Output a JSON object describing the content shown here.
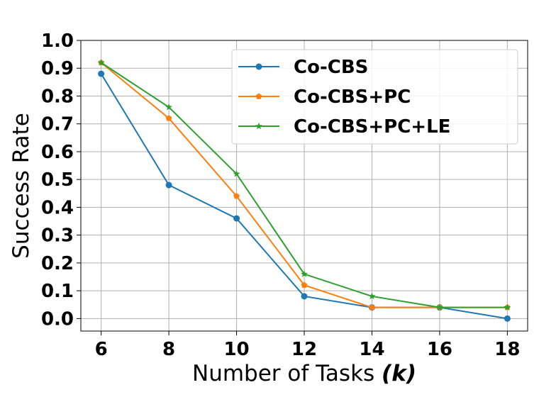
{
  "chart_data": {
    "type": "line",
    "title": "",
    "xlabel": "Number of Tasks",
    "xlabel_symbol": "(k)",
    "ylabel": "Success Rate",
    "x": [
      6,
      8,
      10,
      12,
      14,
      16,
      18
    ],
    "xticks": [
      "6",
      "8",
      "10",
      "12",
      "14",
      "16",
      "18"
    ],
    "yticks": [
      "0.0",
      "0.1",
      "0.2",
      "0.3",
      "0.4",
      "0.5",
      "0.6",
      "0.7",
      "0.8",
      "0.9",
      "1.0"
    ],
    "xlim": [
      5.4,
      18.6
    ],
    "ylim": [
      -0.045,
      1.0
    ],
    "grid": true,
    "legend_position": "top-right",
    "series": [
      {
        "name": "Co-CBS",
        "color": "#1f77b4",
        "marker": "circle",
        "values": [
          0.88,
          0.48,
          0.36,
          0.08,
          0.04,
          0.04,
          0.0
        ]
      },
      {
        "name": "Co-CBS+PC",
        "color": "#ff7f0e",
        "marker": "pentagon",
        "values": [
          0.92,
          0.72,
          0.44,
          0.12,
          0.04,
          0.04,
          0.04
        ]
      },
      {
        "name": "Co-CBS+PC+LE",
        "color": "#2ca02c",
        "marker": "star",
        "values": [
          0.92,
          0.76,
          0.52,
          0.16,
          0.08,
          0.04,
          0.04
        ]
      }
    ]
  }
}
